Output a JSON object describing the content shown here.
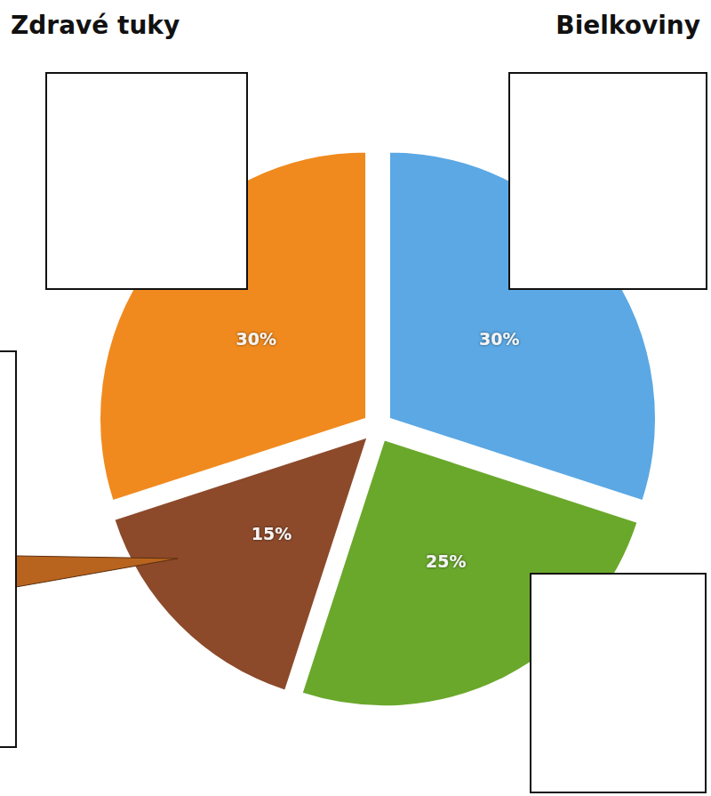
{
  "chart_data": {
    "type": "pie",
    "categories": [
      "Bielkoviny",
      null,
      null,
      "Zdravé tuky"
    ],
    "values": [
      30,
      25,
      15,
      30
    ],
    "value_labels": [
      "30%",
      "25%",
      "15%",
      "30%"
    ],
    "colors": [
      "#5ba8e4",
      "#6aa82c",
      "#8c4a2b",
      "#f08a1e"
    ],
    "data_labels": true
  }
}
